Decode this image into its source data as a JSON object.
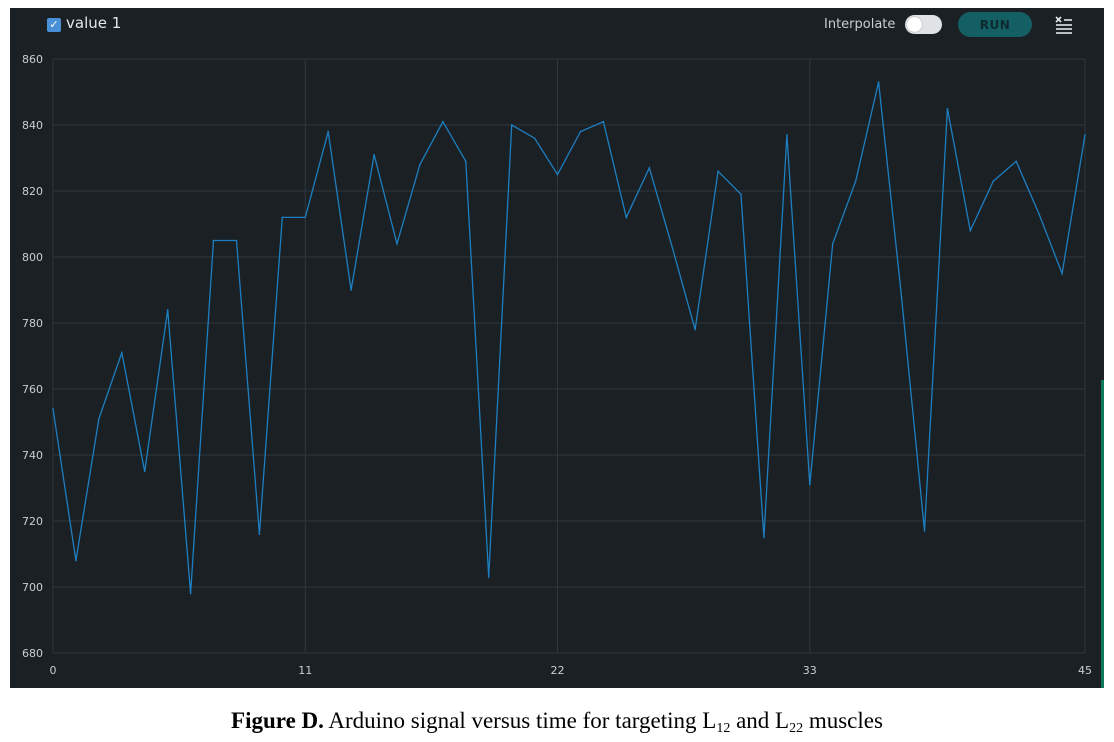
{
  "toolbar": {
    "series_checkbox_checked": true,
    "series_label": "value 1",
    "interpolate_label": "Interpolate",
    "interpolate_on": false,
    "run_label": "RUN",
    "clear_icon": "clear-list-icon"
  },
  "colors": {
    "background": "#1b2024",
    "grid": "#2f383e",
    "line": "#1d7fc1",
    "tick_text": "#c9ced3",
    "checkbox": "#4a90d9",
    "run_button": "#135f63"
  },
  "caption": {
    "figure_label": "Figure D.",
    "text_before_first": " Arduino signal versus time for targeting L",
    "sub1": "12",
    "text_between": " and L",
    "sub2": "22",
    "text_after": " muscles"
  },
  "chart_data": {
    "type": "line",
    "title": "",
    "xlabel": "",
    "ylabel": "",
    "xlim": [
      0,
      45
    ],
    "ylim": [
      680,
      860
    ],
    "x_ticks": [
      0,
      11,
      22,
      33,
      45
    ],
    "y_ticks": [
      680,
      700,
      720,
      740,
      760,
      780,
      800,
      820,
      840,
      860
    ],
    "grid": true,
    "legend": "top-left",
    "series": [
      {
        "name": "value 1",
        "x": [
          0,
          1,
          2,
          3,
          4,
          5,
          6,
          7,
          8,
          9,
          10,
          11,
          12,
          13,
          14,
          15,
          16,
          17,
          18,
          19,
          20,
          21,
          22,
          23,
          24,
          25,
          26,
          27,
          28,
          29,
          30,
          31,
          32,
          33,
          34,
          35,
          36,
          37,
          38,
          39,
          40,
          41,
          42,
          43,
          44,
          45
        ],
        "values": [
          754,
          708,
          751,
          771,
          735,
          784,
          698,
          805,
          805,
          716,
          812,
          812,
          838,
          790,
          831,
          804,
          828,
          841,
          829,
          703,
          840,
          836,
          825,
          838,
          841,
          812,
          827,
          803,
          778,
          826,
          819,
          715,
          837,
          731,
          804,
          823,
          853,
          788,
          717,
          845,
          808,
          823,
          829,
          813,
          795,
          837
        ]
      }
    ]
  }
}
